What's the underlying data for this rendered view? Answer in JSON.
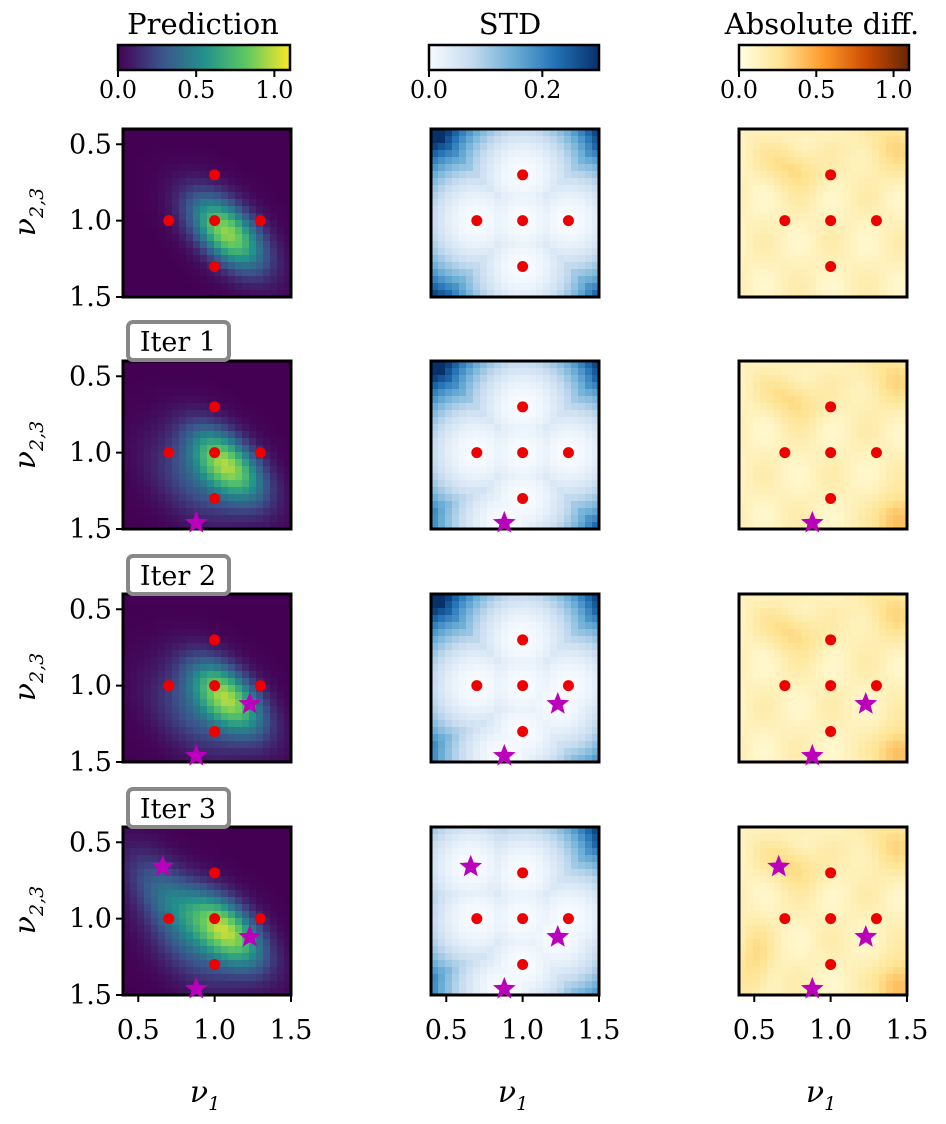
{
  "chart_data": {
    "type": "heatmap",
    "columns": [
      {
        "title": "Prediction",
        "colormap": "viridis",
        "colors": [
          "#440154",
          "#3b528b",
          "#21918c",
          "#5ec962",
          "#fde725"
        ],
        "colorbar_range": [
          0,
          1.1
        ],
        "colorbar_ticks": [
          "0.0",
          "0.5",
          "1.0"
        ],
        "colorbar_tick_values": [
          0,
          0.5,
          1.0
        ]
      },
      {
        "title": "STD",
        "colormap": "Blues",
        "colors": [
          "#f7fbff",
          "#c6dbef",
          "#6baed6",
          "#2171b5",
          "#08306b"
        ],
        "colorbar_range": [
          0,
          0.3
        ],
        "colorbar_ticks": [
          "0.0",
          "0.2"
        ],
        "colorbar_tick_values": [
          0,
          0.2
        ]
      },
      {
        "title": "Absolute diff.",
        "colormap": "YlOrBr",
        "colors": [
          "#ffffe5",
          "#fee391",
          "#fe9929",
          "#cc4c02",
          "#662506"
        ],
        "colorbar_range": [
          0,
          1.1
        ],
        "colorbar_ticks": [
          "0.0",
          "0.5",
          "1.0"
        ],
        "colorbar_tick_values": [
          0,
          0.5,
          1.0
        ]
      }
    ],
    "rows": [
      {
        "label": ""
      },
      {
        "label": "Iter 1"
      },
      {
        "label": "Iter 2"
      },
      {
        "label": "Iter 3"
      }
    ],
    "xlim": [
      0.4,
      1.5
    ],
    "ylim": [
      0.4,
      1.5
    ],
    "x_ticks": [
      "0.5",
      "1.0",
      "1.5"
    ],
    "x_tick_values": [
      0.5,
      1.0,
      1.5
    ],
    "y_ticks": [
      "0.5",
      "1.0",
      "1.5"
    ],
    "y_tick_values": [
      0.5,
      1.0,
      1.5
    ],
    "xlabel": "ν",
    "xlabel_sub": "1",
    "ylabel": "ν",
    "ylabel_sub": "2,3",
    "initial_points": [
      {
        "x": 1.0,
        "y": 0.7
      },
      {
        "x": 0.7,
        "y": 1.0
      },
      {
        "x": 1.0,
        "y": 1.0
      },
      {
        "x": 1.3,
        "y": 1.0
      },
      {
        "x": 1.0,
        "y": 1.3
      }
    ],
    "query_points": [
      {
        "x": 0.88,
        "y": 1.46,
        "iter": 1
      },
      {
        "x": 1.23,
        "y": 1.12,
        "iter": 2
      },
      {
        "x": 0.66,
        "y": 0.66,
        "iter": 3
      }
    ],
    "point_color": "#ee0000",
    "star_color": "#bb00bb"
  }
}
